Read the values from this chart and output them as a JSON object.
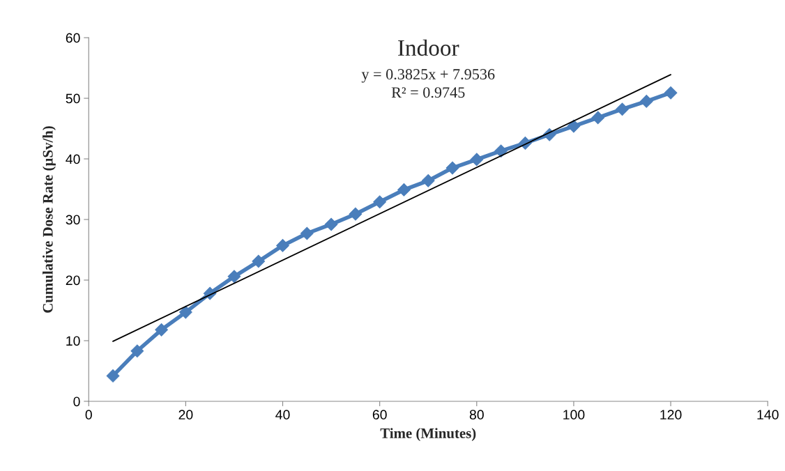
{
  "chart_data": {
    "type": "line",
    "title": "Indoor",
    "xlabel": "Time (Minutes)",
    "ylabel": "Cumulative Dose Rate (µSv/h)",
    "annotations": [
      "y = 0.3825x + 7.9536",
      "R² = 0.9745"
    ],
    "series": [
      {
        "color": "#4a7ebb",
        "marker": "diamond",
        "x": [
          5,
          10,
          15,
          20,
          25,
          30,
          35,
          40,
          45,
          50,
          55,
          60,
          65,
          70,
          75,
          80,
          85,
          90,
          95,
          100,
          105,
          110,
          115,
          120
        ],
        "values": [
          4.2,
          8.3,
          11.8,
          14.7,
          17.8,
          20.6,
          23.1,
          25.7,
          27.7,
          29.2,
          30.9,
          32.9,
          34.9,
          36.4,
          38.5,
          39.9,
          41.3,
          42.6,
          44.0,
          45.4,
          46.8,
          48.2,
          49.5,
          50.9
        ]
      },
      {
        "type": "line",
        "color": "#000000",
        "marker": "none",
        "x": [
          5,
          120
        ],
        "values": [
          9.9,
          53.9
        ]
      }
    ],
    "xlim": [
      0,
      140
    ],
    "xticks": [
      0,
      20,
      40,
      60,
      80,
      100,
      120,
      140
    ],
    "ylim": [
      0,
      60
    ],
    "yticks": [
      0,
      10,
      20,
      30,
      40,
      50,
      60
    ],
    "grid": false,
    "legend": false
  }
}
